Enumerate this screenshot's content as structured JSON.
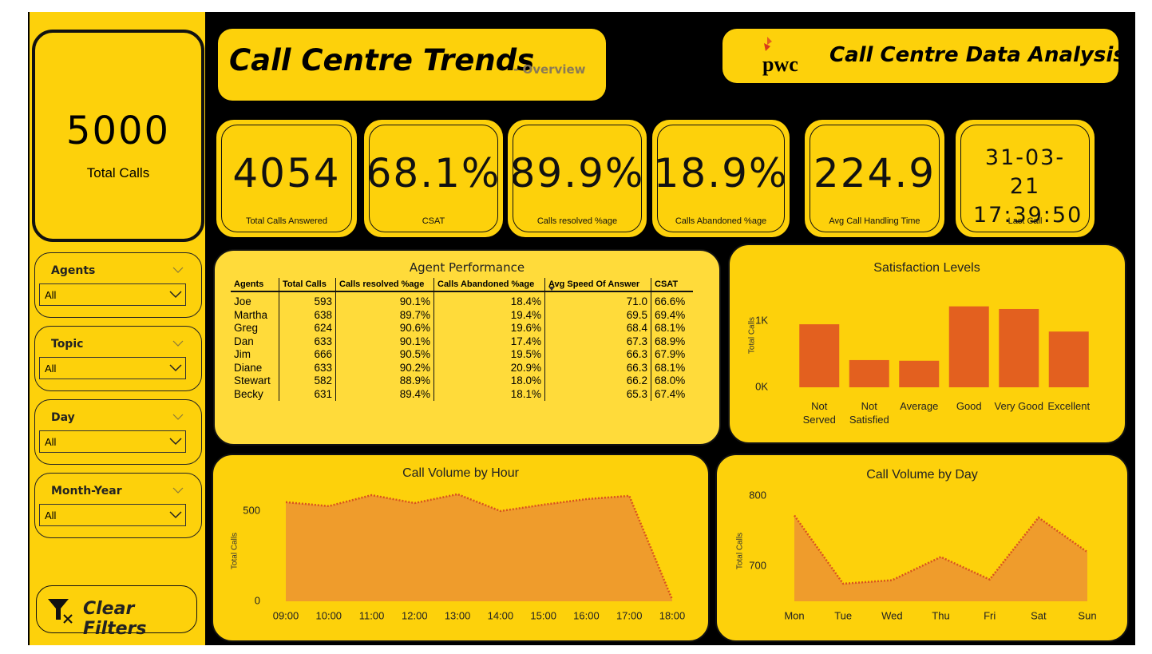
{
  "sidebar": {
    "total": {
      "value": "5000",
      "label": "Total Calls"
    },
    "slicers": [
      {
        "label": "Agents",
        "value": "All"
      },
      {
        "label": "Topic",
        "value": "All"
      },
      {
        "label": "Day",
        "value": "All"
      },
      {
        "label": "Month-Year",
        "value": "All"
      }
    ],
    "clear_filters": "Clear Filters"
  },
  "header": {
    "title": "Call Centre Trends",
    "subtitle": "- Overview",
    "brand": "pwc",
    "brand_title": "Call Centre Data Analysis"
  },
  "kpis": [
    {
      "value": "4054",
      "label": "Total Calls Answered"
    },
    {
      "value": "68.1%",
      "label": "CSAT"
    },
    {
      "value": "89.9%",
      "label": "Calls resolved %age"
    },
    {
      "value": "18.9%",
      "label": "Calls Abandoned %age"
    },
    {
      "value": "224.9",
      "label": "Avg Call Handling Time"
    },
    {
      "value": "31-03-21 17:39:50",
      "label": "Last Call"
    }
  ],
  "table": {
    "title": "Agent Performance",
    "columns": [
      "Agents",
      "Total Calls",
      "Calls resolved %age",
      "Calls Abandoned %age",
      "Avg Speed Of Answer",
      "CSAT"
    ],
    "rows": [
      [
        "Joe",
        "593",
        "90.1%",
        "18.4%",
        "71.0",
        "66.6%"
      ],
      [
        "Martha",
        "638",
        "89.7%",
        "19.4%",
        "69.5",
        "69.4%"
      ],
      [
        "Greg",
        "624",
        "90.6%",
        "19.6%",
        "68.4",
        "68.1%"
      ],
      [
        "Dan",
        "633",
        "90.1%",
        "17.4%",
        "67.3",
        "68.9%"
      ],
      [
        "Jim",
        "666",
        "90.5%",
        "19.5%",
        "66.3",
        "67.9%"
      ],
      [
        "Diane",
        "633",
        "90.2%",
        "20.9%",
        "66.3",
        "68.1%"
      ],
      [
        "Stewart",
        "582",
        "88.9%",
        "18.0%",
        "66.2",
        "68.0%"
      ],
      [
        "Becky",
        "631",
        "89.4%",
        "18.1%",
        "65.3",
        "67.4%"
      ]
    ]
  },
  "chart_data": [
    {
      "type": "bar",
      "title": "Satisfaction Levels",
      "y_label": "Total Calls",
      "categories": [
        "Not Served",
        "Not Satisfied",
        "Average",
        "Good",
        "Very Good",
        "Excellent"
      ],
      "values": [
        950,
        410,
        400,
        1220,
        1180,
        840
      ],
      "color": "#e3601f",
      "ylim": [
        0,
        1300
      ],
      "yticks": [
        {
          "value": 0,
          "label": "0K"
        },
        {
          "value": 1000,
          "label": "1K"
        }
      ]
    },
    {
      "type": "area",
      "title": "Call Volume by Hour",
      "y_label": "Total Calls",
      "categories": [
        "09:00",
        "10:00",
        "11:00",
        "12:00",
        "13:00",
        "14:00",
        "15:00",
        "16:00",
        "17:00",
        "18:00"
      ],
      "values": [
        549,
        527,
        588,
        544,
        593,
        500,
        535,
        566,
        584,
        10
      ],
      "color": "#ef9c2c",
      "line_color": "#d9531e",
      "ylim": [
        0,
        650
      ],
      "yticks": [
        0,
        500
      ]
    },
    {
      "type": "area",
      "title": "Call Volume by Day",
      "y_label": "Total Calls",
      "categories": [
        "Mon",
        "Tue",
        "Wed",
        "Thu",
        "Fri",
        "Sat",
        "Sun"
      ],
      "values": [
        772,
        675,
        680,
        713,
        681,
        769,
        720
      ],
      "color": "#ef9c2c",
      "line_color": "#d9531e",
      "ylim": [
        650,
        810
      ],
      "yticks": [
        700,
        800
      ]
    }
  ]
}
